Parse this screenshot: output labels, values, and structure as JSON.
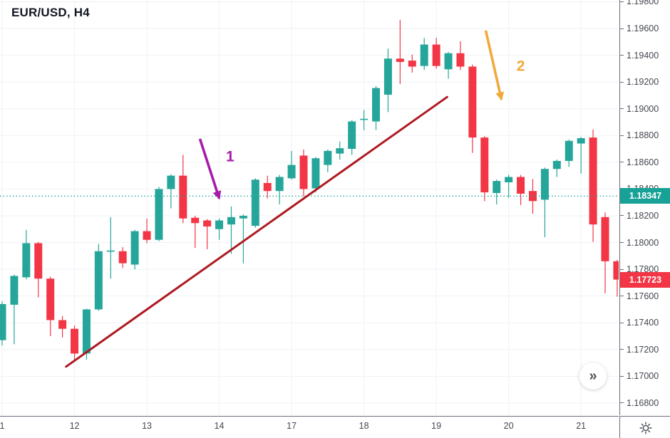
{
  "header": {
    "title": "EUR/USD, H4"
  },
  "controls": {
    "collapse_button_glyph": "»"
  },
  "icons": {
    "collapse_panel": "double-chevron-right",
    "axis_settings": "gear"
  },
  "chart_data": {
    "type": "candlestick",
    "symbol": "EUR/USD",
    "timeframe": "H4",
    "background": "#ffffff",
    "grid": "on",
    "y_axis": {
      "side": "right",
      "decimals": 5,
      "range_top": 1.19813,
      "range_bottom": 1.16709
    },
    "y_tick_labels": [
      "1.19800",
      "1.19600",
      "1.19400",
      "1.19200",
      "1.19000",
      "1.18800",
      "1.18600",
      "1.18400",
      "1.18200",
      "1.18000",
      "1.17800",
      "1.17600",
      "1.17400",
      "1.17200",
      "1.17000",
      "1.16800"
    ],
    "x_tick_labels": [
      {
        "label": "1",
        "candle_index": 0
      },
      {
        "label": "12",
        "candle_index": 6
      },
      {
        "label": "13",
        "candle_index": 12
      },
      {
        "label": "14",
        "candle_index": 18
      },
      {
        "label": "17",
        "candle_index": 24
      },
      {
        "label": "18",
        "candle_index": 30
      },
      {
        "label": "19",
        "candle_index": 36
      },
      {
        "label": "20",
        "candle_index": 42
      },
      {
        "label": "21",
        "candle_index": 48
      }
    ],
    "candles_ohlc": [
      [
        1.1727,
        1.1756,
        1.1723,
        1.1754
      ],
      [
        1.17535,
        1.1776,
        1.1724,
        1.1775
      ],
      [
        1.1774,
        1.18095,
        1.17725,
        1.17995
      ],
      [
        1.17995,
        1.18005,
        1.1759,
        1.1773
      ],
      [
        1.1773,
        1.17745,
        1.173,
        1.1742
      ],
      [
        1.1742,
        1.1745,
        1.1729,
        1.17355
      ],
      [
        1.17355,
        1.1738,
        1.17115,
        1.1717
      ],
      [
        1.1717,
        1.17505,
        1.17125,
        1.175
      ],
      [
        1.175,
        1.1799,
        1.1749,
        1.17935
      ],
      [
        1.17935,
        1.1819,
        1.1773,
        1.1794
      ],
      [
        1.17935,
        1.17965,
        1.1781,
        1.17845
      ],
      [
        1.17835,
        1.18095,
        1.178,
        1.18085
      ],
      [
        1.18085,
        1.1818,
        1.17995,
        1.1802
      ],
      [
        1.1802,
        1.18415,
        1.1801,
        1.184
      ],
      [
        1.184,
        1.1851,
        1.18255,
        1.185
      ],
      [
        1.185,
        1.18655,
        1.18145,
        1.1818
      ],
      [
        1.18185,
        1.182,
        1.1796,
        1.18145
      ],
      [
        1.18165,
        1.18175,
        1.1795,
        1.1812
      ],
      [
        1.181,
        1.1818,
        1.1802,
        1.18165
      ],
      [
        1.18135,
        1.1827,
        1.17915,
        1.1819
      ],
      [
        1.1818,
        1.1821,
        1.17845,
        1.182
      ],
      [
        1.18125,
        1.1848,
        1.1811,
        1.1847
      ],
      [
        1.18445,
        1.185,
        1.1833,
        1.18385
      ],
      [
        1.18385,
        1.18505,
        1.18285,
        1.1849
      ],
      [
        1.1848,
        1.18685,
        1.1847,
        1.1858
      ],
      [
        1.1865,
        1.18695,
        1.18345,
        1.184
      ],
      [
        1.18405,
        1.1864,
        1.18375,
        1.1863
      ],
      [
        1.1858,
        1.18695,
        1.18525,
        1.18685
      ],
      [
        1.18665,
        1.18755,
        1.1862,
        1.18705
      ],
      [
        1.187,
        1.18915,
        1.18655,
        1.18905
      ],
      [
        1.1892,
        1.1899,
        1.1884,
        1.18925
      ],
      [
        1.18905,
        1.1917,
        1.1884,
        1.19155
      ],
      [
        1.19105,
        1.1945,
        1.18975,
        1.19375
      ],
      [
        1.19375,
        1.19665,
        1.19185,
        1.1935
      ],
      [
        1.1936,
        1.19405,
        1.1927,
        1.19315
      ],
      [
        1.1932,
        1.1953,
        1.1929,
        1.1948
      ],
      [
        1.1948,
        1.1953,
        1.193,
        1.1932
      ],
      [
        1.19295,
        1.19425,
        1.19225,
        1.19415
      ],
      [
        1.19415,
        1.19505,
        1.1929,
        1.19315
      ],
      [
        1.19315,
        1.1933,
        1.1867,
        1.18785
      ],
      [
        1.18785,
        1.18795,
        1.1831,
        1.18375
      ],
      [
        1.1837,
        1.1847,
        1.18285,
        1.1846
      ],
      [
        1.1845,
        1.18505,
        1.18335,
        1.1849
      ],
      [
        1.1849,
        1.18505,
        1.1828,
        1.18365
      ],
      [
        1.18385,
        1.18475,
        1.18215,
        1.1831
      ],
      [
        1.1832,
        1.1856,
        1.1804,
        1.1855
      ],
      [
        1.1855,
        1.1862,
        1.1849,
        1.1861
      ],
      [
        1.1861,
        1.1877,
        1.18565,
        1.1876
      ],
      [
        1.1874,
        1.1879,
        1.18515,
        1.1878
      ],
      [
        1.18785,
        1.18845,
        1.18005,
        1.18135
      ],
      [
        1.1819,
        1.18225,
        1.1762,
        1.1786
      ],
      [
        1.1786,
        1.1787,
        1.17595,
        1.17723
      ]
    ],
    "current_price_line": {
      "price": 1.18347,
      "label": "1.18347",
      "style": "dotted"
    },
    "last_price": {
      "price": 1.17723,
      "label": "1.17723",
      "direction": "down"
    },
    "trend_line": {
      "from": {
        "candle": 5.3,
        "price": 1.17072
      },
      "to": {
        "candle": 36.9,
        "price": 1.19088
      }
    },
    "annotations": [
      {
        "label": "1",
        "color": "#a61ca8",
        "from": {
          "candle": 16.4,
          "price": 1.18775
        },
        "to": {
          "candle": 18.0,
          "price": 1.1833
        },
        "label_at": {
          "candle": 18.9,
          "price": 1.18645
        }
      },
      {
        "label": "2",
        "color": "#f2a93c",
        "from": {
          "candle": 40.1,
          "price": 1.19585
        },
        "to": {
          "candle": 41.4,
          "price": 1.1907
        },
        "label_at": {
          "candle": 43.0,
          "price": 1.1932
        }
      }
    ],
    "colors": {
      "up": "#26a69a",
      "down": "#f23645",
      "grid": "#eef1f6",
      "axis_text": "#44474f",
      "axis_line": "#6a6e79",
      "trend_line": "#ae1a22",
      "current_price_badge": "#18a297",
      "last_price_badge": "#f23645"
    }
  }
}
